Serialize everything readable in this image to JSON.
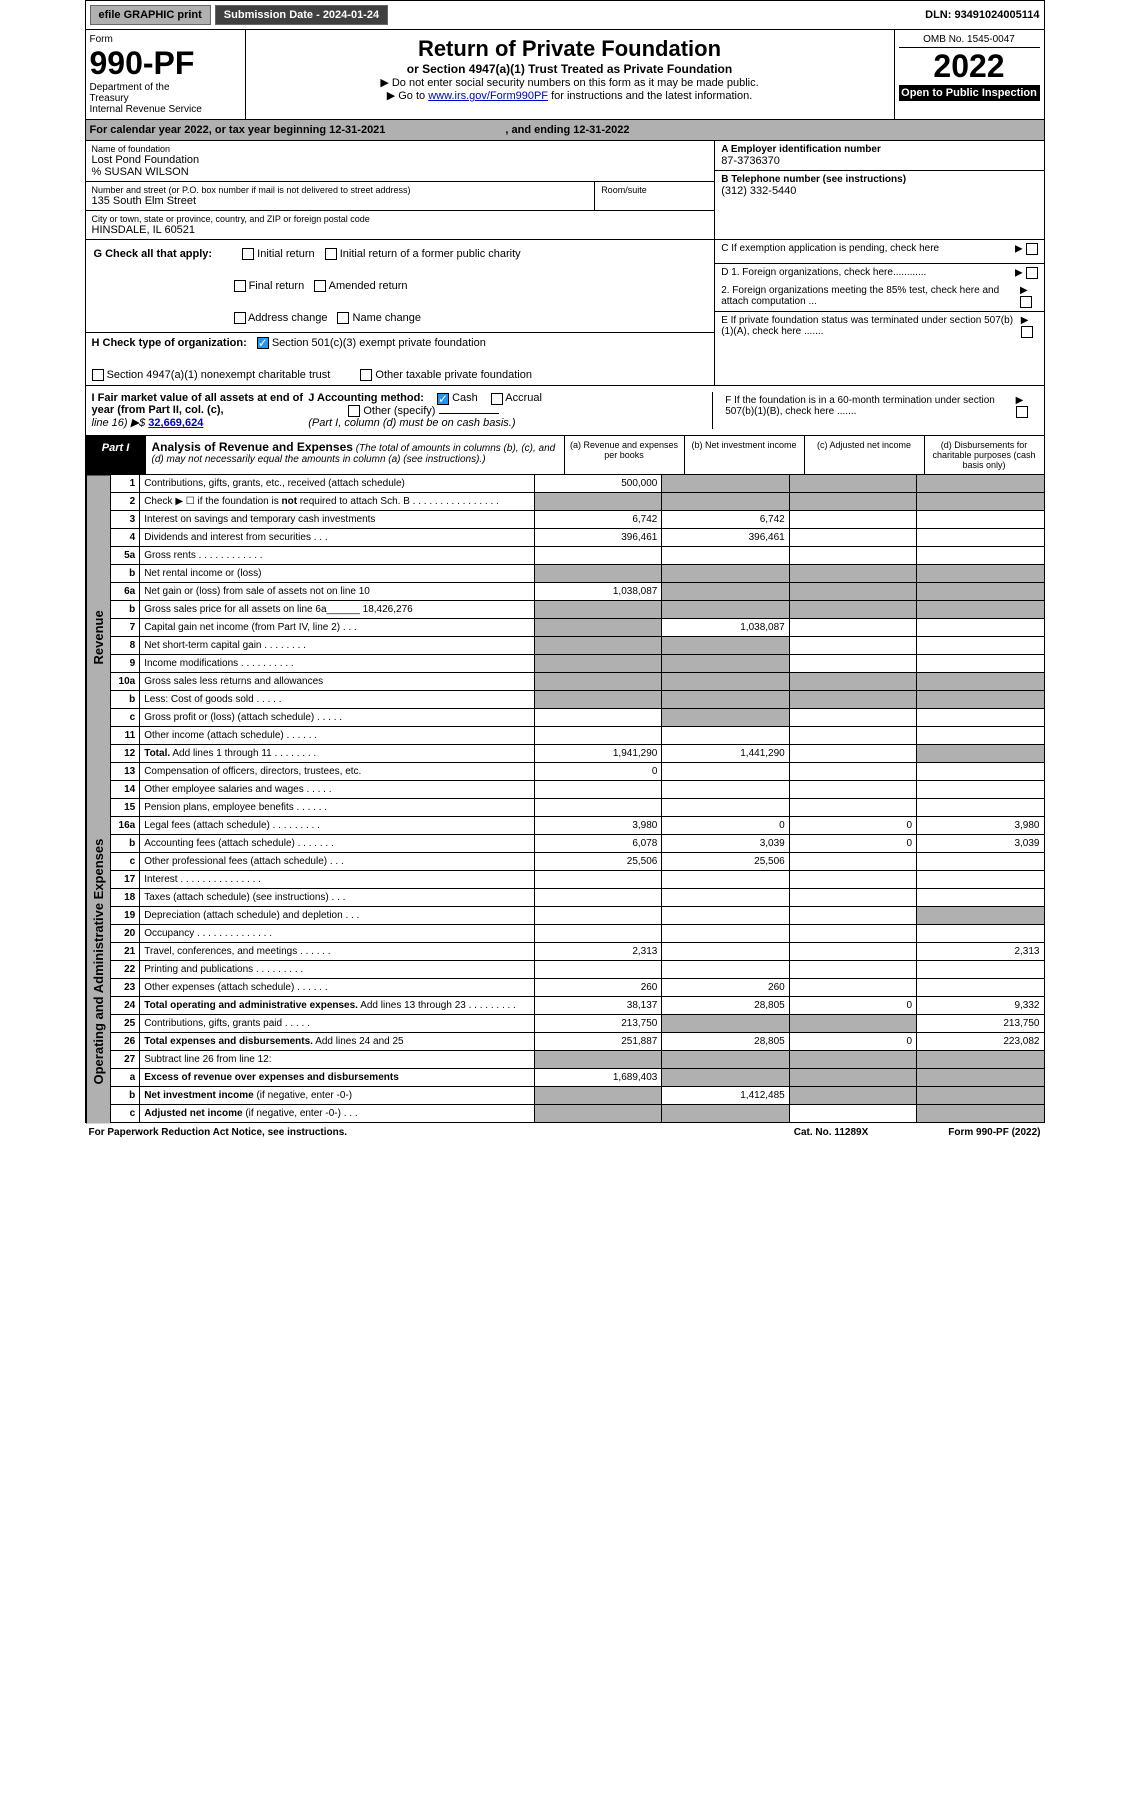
{
  "top": {
    "efile": "efile GRAPHIC print",
    "subdate_label": "Submission Date - 2024-01-24",
    "dln": "DLN: 93491024005114"
  },
  "header": {
    "form": "Form",
    "formnum": "990-PF",
    "dept": "Department of the Treasury\nInternal Revenue Service",
    "title": "Return of Private Foundation",
    "subtitle": "or Section 4947(a)(1) Trust Treated as Private Foundation",
    "note1": "▶ Do not enter social security numbers on this form as it may be made public.",
    "note2_pre": "▶ Go to ",
    "note2_link": "www.irs.gov/Form990PF",
    "note2_post": " for instructions and the latest information.",
    "omb": "OMB No. 1545-0047",
    "year": "2022",
    "inspect": "Open to Public Inspection"
  },
  "calyear": {
    "text": "For calendar year 2022, or tax year beginning 12-31-2021",
    "ending": ", and ending 12-31-2022"
  },
  "info": {
    "name_label": "Name of foundation",
    "name": "Lost Pond Foundation",
    "care": "% SUSAN WILSON",
    "addr_label": "Number and street (or P.O. box number if mail is not delivered to street address)",
    "addr": "135 South Elm Street",
    "room_label": "Room/suite",
    "city_label": "City or town, state or province, country, and ZIP or foreign postal code",
    "city": "HINSDALE, IL  60521",
    "ein_label": "A Employer identification number",
    "ein": "87-3736370",
    "phone_label": "B Telephone number (see instructions)",
    "phone": "(312) 332-5440",
    "c_label": "C If exemption application is pending, check here",
    "d1": "D 1. Foreign organizations, check here............",
    "d2": "2. Foreign organizations meeting the 85% test, check here and attach computation ...",
    "e_label": "E If private foundation status was terminated under section 507(b)(1)(A), check here .......",
    "f_label": "F If the foundation is in a 60-month termination under section 507(b)(1)(B), check here ......."
  },
  "g": {
    "label": "G Check all that apply:",
    "opts": [
      "Initial return",
      "Initial return of a former public charity",
      "Final return",
      "Amended return",
      "Address change",
      "Name change"
    ]
  },
  "h": {
    "label": "H Check type of organization:",
    "opt1": "Section 501(c)(3) exempt private foundation",
    "opt2": "Section 4947(a)(1) nonexempt charitable trust",
    "opt3": "Other taxable private foundation"
  },
  "i": {
    "label": "I Fair market value of all assets at end of year (from Part II, col. (c),",
    "line": "line 16) ▶$ ",
    "fmv": "32,669,624"
  },
  "j": {
    "label": "J Accounting method:",
    "cash": "Cash",
    "accrual": "Accrual",
    "other": "Other (specify)",
    "note": "(Part I, column (d) must be on cash basis.)"
  },
  "part1": {
    "label": "Part I",
    "title": "Analysis of Revenue and Expenses",
    "note": "(The total of amounts in columns (b), (c), and (d) may not necessarily equal the amounts in column (a) (see instructions).)",
    "cols": {
      "a": "(a) Revenue and expenses per books",
      "b": "(b) Net investment income",
      "c": "(c) Adjusted net income",
      "d": "(d) Disbursements for charitable purposes (cash basis only)"
    }
  },
  "vlabels": {
    "rev": "Revenue",
    "exp": "Operating and Administrative Expenses"
  },
  "rows": [
    {
      "n": "1",
      "d": "Contributions, gifts, grants, etc., received (attach schedule)",
      "a": "500,000",
      "shade": [
        "b",
        "c",
        "d"
      ]
    },
    {
      "n": "2",
      "d": "Check ▶ ☐ if the foundation is <b>not</b> required to attach Sch. B   . . . . . . . . . . . . . . . .",
      "shade": [
        "a",
        "b",
        "c",
        "d"
      ]
    },
    {
      "n": "3",
      "d": "Interest on savings and temporary cash investments",
      "a": "6,742",
      "b": "6,742"
    },
    {
      "n": "4",
      "d": "Dividends and interest from securities    . . .",
      "a": "396,461",
      "b": "396,461"
    },
    {
      "n": "5a",
      "d": "Gross rents      . . . . . . . . . . . ."
    },
    {
      "n": "b",
      "d": "Net rental income or (loss)",
      "shade": [
        "a",
        "b",
        "c",
        "d"
      ]
    },
    {
      "n": "6a",
      "d": "Net gain or (loss) from sale of assets not on line 10",
      "a": "1,038,087",
      "shade": [
        "b",
        "c",
        "d"
      ]
    },
    {
      "n": "b",
      "d": "Gross sales price for all assets on line 6a______ 18,426,276",
      "shade": [
        "a",
        "b",
        "c",
        "d"
      ]
    },
    {
      "n": "7",
      "d": "Capital gain net income (from Part IV, line 2)   . . .",
      "b": "1,038,087",
      "shade": [
        "a"
      ]
    },
    {
      "n": "8",
      "d": "Net short-term capital gain  . . . . . . . .",
      "shade": [
        "a",
        "b"
      ]
    },
    {
      "n": "9",
      "d": "Income modifications . . . . . . . . . .",
      "shade": [
        "a",
        "b"
      ]
    },
    {
      "n": "10a",
      "d": "Gross sales less returns and allowances",
      "shade": [
        "a",
        "b",
        "c",
        "d"
      ]
    },
    {
      "n": "b",
      "d": "Less: Cost of goods sold     . . . . .",
      "shade": [
        "a",
        "b",
        "c",
        "d"
      ]
    },
    {
      "n": "c",
      "d": "Gross profit or (loss) (attach schedule)    . . . . .",
      "shade": [
        "b"
      ]
    },
    {
      "n": "11",
      "d": "Other income (attach schedule)    . . . . . ."
    },
    {
      "n": "12",
      "d": "<b>Total.</b> Add lines 1 through 11  . . . . . . . .",
      "a": "1,941,290",
      "b": "1,441,290",
      "shade": [
        "d"
      ]
    },
    {
      "n": "13",
      "d": "Compensation of officers, directors, trustees, etc.",
      "a": "0"
    },
    {
      "n": "14",
      "d": "Other employee salaries and wages   . . . . ."
    },
    {
      "n": "15",
      "d": "Pension plans, employee benefits . . . . . ."
    },
    {
      "n": "16a",
      "d": "Legal fees (attach schedule) . . . . . . . . .",
      "a": "3,980",
      "b": "0",
      "c": "0",
      "d2": "3,980"
    },
    {
      "n": "b",
      "d": "Accounting fees (attach schedule) . . . . . . .",
      "a": "6,078",
      "b": "3,039",
      "c": "0",
      "d2": "3,039"
    },
    {
      "n": "c",
      "d": "Other professional fees (attach schedule)    . . .",
      "a": "25,506",
      "b": "25,506"
    },
    {
      "n": "17",
      "d": "Interest . . . . . . . . . . . . . . ."
    },
    {
      "n": "18",
      "d": "Taxes (attach schedule) (see instructions)     . . ."
    },
    {
      "n": "19",
      "d": "Depreciation (attach schedule) and depletion   . . .",
      "shade": [
        "d"
      ]
    },
    {
      "n": "20",
      "d": "Occupancy . . . . . . . . . . . . . ."
    },
    {
      "n": "21",
      "d": "Travel, conferences, and meetings . . . . . .",
      "a": "2,313",
      "d2": "2,313"
    },
    {
      "n": "22",
      "d": "Printing and publications . . . . . . . . ."
    },
    {
      "n": "23",
      "d": "Other expenses (attach schedule) . . . . . .",
      "a": "260",
      "b": "260"
    },
    {
      "n": "24",
      "d": "<b>Total operating and administrative expenses.</b> Add lines 13 through 23  . . . . . . . . .",
      "a": "38,137",
      "b": "28,805",
      "c": "0",
      "d2": "9,332"
    },
    {
      "n": "25",
      "d": "Contributions, gifts, grants paid     . . . . .",
      "a": "213,750",
      "d2": "213,750",
      "shade": [
        "b",
        "c"
      ]
    },
    {
      "n": "26",
      "d": "<b>Total expenses and disbursements.</b> Add lines 24 and 25",
      "a": "251,887",
      "b": "28,805",
      "c": "0",
      "d2": "223,082"
    },
    {
      "n": "27",
      "d": "Subtract line 26 from line 12:",
      "shade": [
        "a",
        "b",
        "c",
        "d"
      ]
    },
    {
      "n": "a",
      "d": "<b>Excess of revenue over expenses and disbursements</b>",
      "a": "1,689,403",
      "shade": [
        "b",
        "c",
        "d"
      ]
    },
    {
      "n": "b",
      "d": "<b>Net investment income</b> (if negative, enter -0-)",
      "b": "1,412,485",
      "shade": [
        "a",
        "c",
        "d"
      ]
    },
    {
      "n": "c",
      "d": "<b>Adjusted net income</b> (if negative, enter -0-)    . . .",
      "shade": [
        "a",
        "b",
        "d"
      ]
    }
  ],
  "footer": {
    "left": "For Paperwork Reduction Act Notice, see instructions.",
    "mid": "Cat. No. 11289X",
    "right": "Form 990-PF (2022)"
  }
}
